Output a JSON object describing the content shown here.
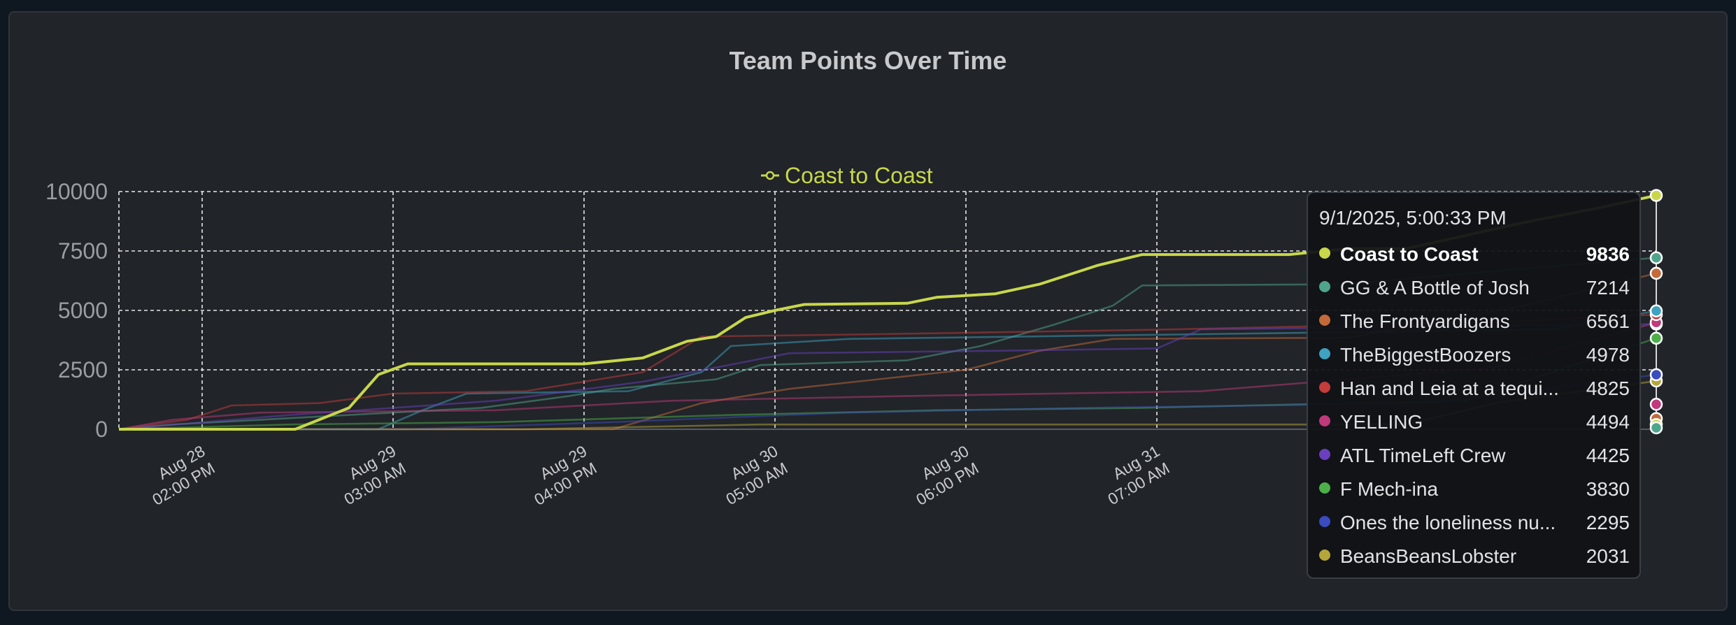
{
  "chart_data": {
    "type": "line",
    "title": "Team Points Over Time",
    "legend": {
      "label": "Coast to Coast",
      "placement": "top-center",
      "color": "#c8d74a"
    },
    "y_ticks": [
      "10000",
      "7500",
      "5000",
      "2500",
      "0"
    ],
    "ylim": [
      0,
      10000
    ],
    "x_ticks": [
      {
        "date": "Aug 28",
        "time": "02:00 PM"
      },
      {
        "date": "Aug 29",
        "time": "03:00 AM"
      },
      {
        "date": "Aug 29",
        "time": "04:00 PM"
      },
      {
        "date": "Aug 30",
        "time": "05:00 AM"
      },
      {
        "date": "Aug 30",
        "time": "06:00 PM"
      },
      {
        "date": "Aug 31",
        "time": "07:00 AM"
      }
    ],
    "xlim": [
      "2025-08-28T08:20",
      "2025-09-01T17:00"
    ],
    "grid": true,
    "tooltip_time": "9/1/2025, 5:00:33 PM",
    "series": [
      {
        "name": "Coast to Coast",
        "final": 9836,
        "color": "#c8d74a",
        "points": [
          [
            "2025-08-28T08:20",
            0
          ],
          [
            "2025-08-28T20:20",
            0
          ],
          [
            "2025-08-29T00:00",
            900
          ],
          [
            "2025-08-29T02:00",
            2300
          ],
          [
            "2025-08-29T04:00",
            2750
          ],
          [
            "2025-08-29T16:00",
            2750
          ],
          [
            "2025-08-29T20:00",
            3000
          ],
          [
            "2025-08-29T23:00",
            3700
          ],
          [
            "2025-08-30T01:00",
            3900
          ],
          [
            "2025-08-30T03:00",
            4700
          ],
          [
            "2025-08-30T05:00",
            5000
          ],
          [
            "2025-08-30T07:00",
            5250
          ],
          [
            "2025-08-30T14:00",
            5300
          ],
          [
            "2025-08-30T16:00",
            5550
          ],
          [
            "2025-08-30T20:00",
            5700
          ],
          [
            "2025-08-30T23:00",
            6100
          ],
          [
            "2025-08-31T03:00",
            6900
          ],
          [
            "2025-08-31T06:00",
            7350
          ],
          [
            "2025-08-31T16:00",
            7350
          ],
          [
            "2025-08-31T20:00",
            7600
          ],
          [
            "2025-09-01T00:00",
            7600
          ],
          [
            "2025-09-01T08:00",
            8700
          ],
          [
            "2025-09-01T13:00",
            9300
          ],
          [
            "2025-09-01T17:00",
            9836
          ]
        ]
      },
      {
        "name": "GG & A Bottle of Josh",
        "final": 7214,
        "color": "#4fa58c",
        "points": [
          [
            "2025-08-28T08:20",
            0
          ],
          [
            "2025-08-28T12:00",
            200
          ],
          [
            "2025-08-28T18:00",
            400
          ],
          [
            "2025-08-29T09:00",
            900
          ],
          [
            "2025-08-29T15:00",
            1400
          ],
          [
            "2025-08-29T18:00",
            1700
          ],
          [
            "2025-08-30T01:00",
            2100
          ],
          [
            "2025-08-30T04:00",
            2700
          ],
          [
            "2025-08-30T14:00",
            2900
          ],
          [
            "2025-08-30T19:00",
            3500
          ],
          [
            "2025-08-31T00:00",
            4400
          ],
          [
            "2025-08-31T04:00",
            5200
          ],
          [
            "2025-08-31T06:00",
            6050
          ],
          [
            "2025-08-31T20:00",
            6100
          ],
          [
            "2025-09-01T04:00",
            6550
          ],
          [
            "2025-09-01T17:00",
            7214
          ]
        ]
      },
      {
        "name": "The Frontyardigans",
        "final": 6561,
        "color": "#c46a3a",
        "points": [
          [
            "2025-08-28T08:20",
            0
          ],
          [
            "2025-08-29T18:00",
            0
          ],
          [
            "2025-08-30T00:00",
            1100
          ],
          [
            "2025-08-30T06:00",
            1700
          ],
          [
            "2025-08-30T18:00",
            2500
          ],
          [
            "2025-08-30T23:00",
            3300
          ],
          [
            "2025-08-31T04:00",
            3800
          ],
          [
            "2025-08-31T20:00",
            3850
          ],
          [
            "2025-09-01T08:00",
            5200
          ],
          [
            "2025-09-01T17:00",
            6561
          ]
        ]
      },
      {
        "name": "TheBiggestBoozers",
        "final": 4978,
        "color": "#3fa2c0",
        "points": [
          [
            "2025-08-28T08:20",
            0
          ],
          [
            "2025-08-29T02:00",
            0
          ],
          [
            "2025-08-29T05:00",
            800
          ],
          [
            "2025-08-29T08:00",
            1500
          ],
          [
            "2025-08-29T19:00",
            1600
          ],
          [
            "2025-08-30T00:00",
            2400
          ],
          [
            "2025-08-30T02:00",
            3500
          ],
          [
            "2025-08-30T10:00",
            3800
          ],
          [
            "2025-08-30T22:00",
            3900
          ],
          [
            "2025-08-31T10:00",
            4000
          ],
          [
            "2025-09-01T10:00",
            4200
          ],
          [
            "2025-09-01T17:00",
            4978
          ]
        ]
      },
      {
        "name": "Han and Leia at a tequi...",
        "final": 4825,
        "color": "#c43c3c",
        "points": [
          [
            "2025-08-28T08:20",
            0
          ],
          [
            "2025-08-28T13:00",
            400
          ],
          [
            "2025-08-28T16:00",
            1000
          ],
          [
            "2025-08-28T22:00",
            1100
          ],
          [
            "2025-08-29T03:00",
            1500
          ],
          [
            "2025-08-29T12:00",
            1600
          ],
          [
            "2025-08-29T20:00",
            2400
          ],
          [
            "2025-08-30T00:00",
            3900
          ],
          [
            "2025-08-30T12:00",
            4000
          ],
          [
            "2025-08-31T08:00",
            4200
          ],
          [
            "2025-09-01T06:00",
            4500
          ],
          [
            "2025-09-01T17:00",
            4825
          ]
        ]
      },
      {
        "name": "YELLING",
        "final": 4494,
        "color": "#c0397a",
        "points": [
          [
            "2025-08-28T08:20",
            0
          ],
          [
            "2025-08-28T12:00",
            400
          ],
          [
            "2025-08-28T18:00",
            700
          ],
          [
            "2025-08-29T10:00",
            800
          ],
          [
            "2025-08-29T22:00",
            1200
          ],
          [
            "2025-08-30T14:00",
            1400
          ],
          [
            "2025-08-31T10:00",
            1600
          ],
          [
            "2025-09-01T06:00",
            2600
          ],
          [
            "2025-09-01T17:00",
            4494
          ]
        ]
      },
      {
        "name": "ATL TimeLeft Crew",
        "final": 4425,
        "color": "#6a3fc0",
        "points": [
          [
            "2025-08-28T08:20",
            0
          ],
          [
            "2025-08-28T20:00",
            600
          ],
          [
            "2025-08-29T10:00",
            1200
          ],
          [
            "2025-08-29T20:00",
            2000
          ],
          [
            "2025-08-30T06:00",
            3200
          ],
          [
            "2025-08-30T20:00",
            3300
          ],
          [
            "2025-08-31T07:00",
            3400
          ],
          [
            "2025-08-31T10:00",
            4200
          ],
          [
            "2025-09-01T17:00",
            4425
          ]
        ]
      },
      {
        "name": "F Mech-ina",
        "final": 3830,
        "color": "#4caf48",
        "points": [
          [
            "2025-08-28T08:20",
            0
          ],
          [
            "2025-08-28T20:00",
            200
          ],
          [
            "2025-08-29T10:00",
            300
          ],
          [
            "2025-08-30T02:00",
            600
          ],
          [
            "2025-08-30T16:00",
            800
          ],
          [
            "2025-08-31T06:00",
            900
          ],
          [
            "2025-09-01T04:00",
            1200
          ],
          [
            "2025-09-01T17:00",
            3830
          ]
        ]
      },
      {
        "name": "Ones the loneliness nu...",
        "final": 2295,
        "color": "#3a4cc0",
        "points": [
          [
            "2025-08-28T08:20",
            0
          ],
          [
            "2025-08-29T04:00",
            0
          ],
          [
            "2025-08-29T18:00",
            300
          ],
          [
            "2025-08-30T10:00",
            700
          ],
          [
            "2025-08-31T02:00",
            900
          ],
          [
            "2025-09-01T02:00",
            1100
          ],
          [
            "2025-09-01T17:00",
            2295
          ]
        ]
      },
      {
        "name": "BeansBeansLobster",
        "final": 2031,
        "color": "#b5a63a",
        "points": [
          [
            "2025-08-28T08:20",
            0
          ],
          [
            "2025-08-29T12:00",
            0
          ],
          [
            "2025-08-30T04:00",
            200
          ],
          [
            "2025-09-01T00:00",
            200
          ],
          [
            "2025-09-01T06:00",
            1100
          ],
          [
            "2025-09-01T17:00",
            2031
          ]
        ]
      }
    ],
    "extra_endpoints": [
      {
        "value": 1050,
        "color": "#c0397a"
      },
      {
        "value": 450,
        "color": "#c46a3a"
      },
      {
        "value": 200,
        "color": "#c8d74a"
      },
      {
        "value": 60,
        "color": "#4fa58c"
      }
    ]
  }
}
